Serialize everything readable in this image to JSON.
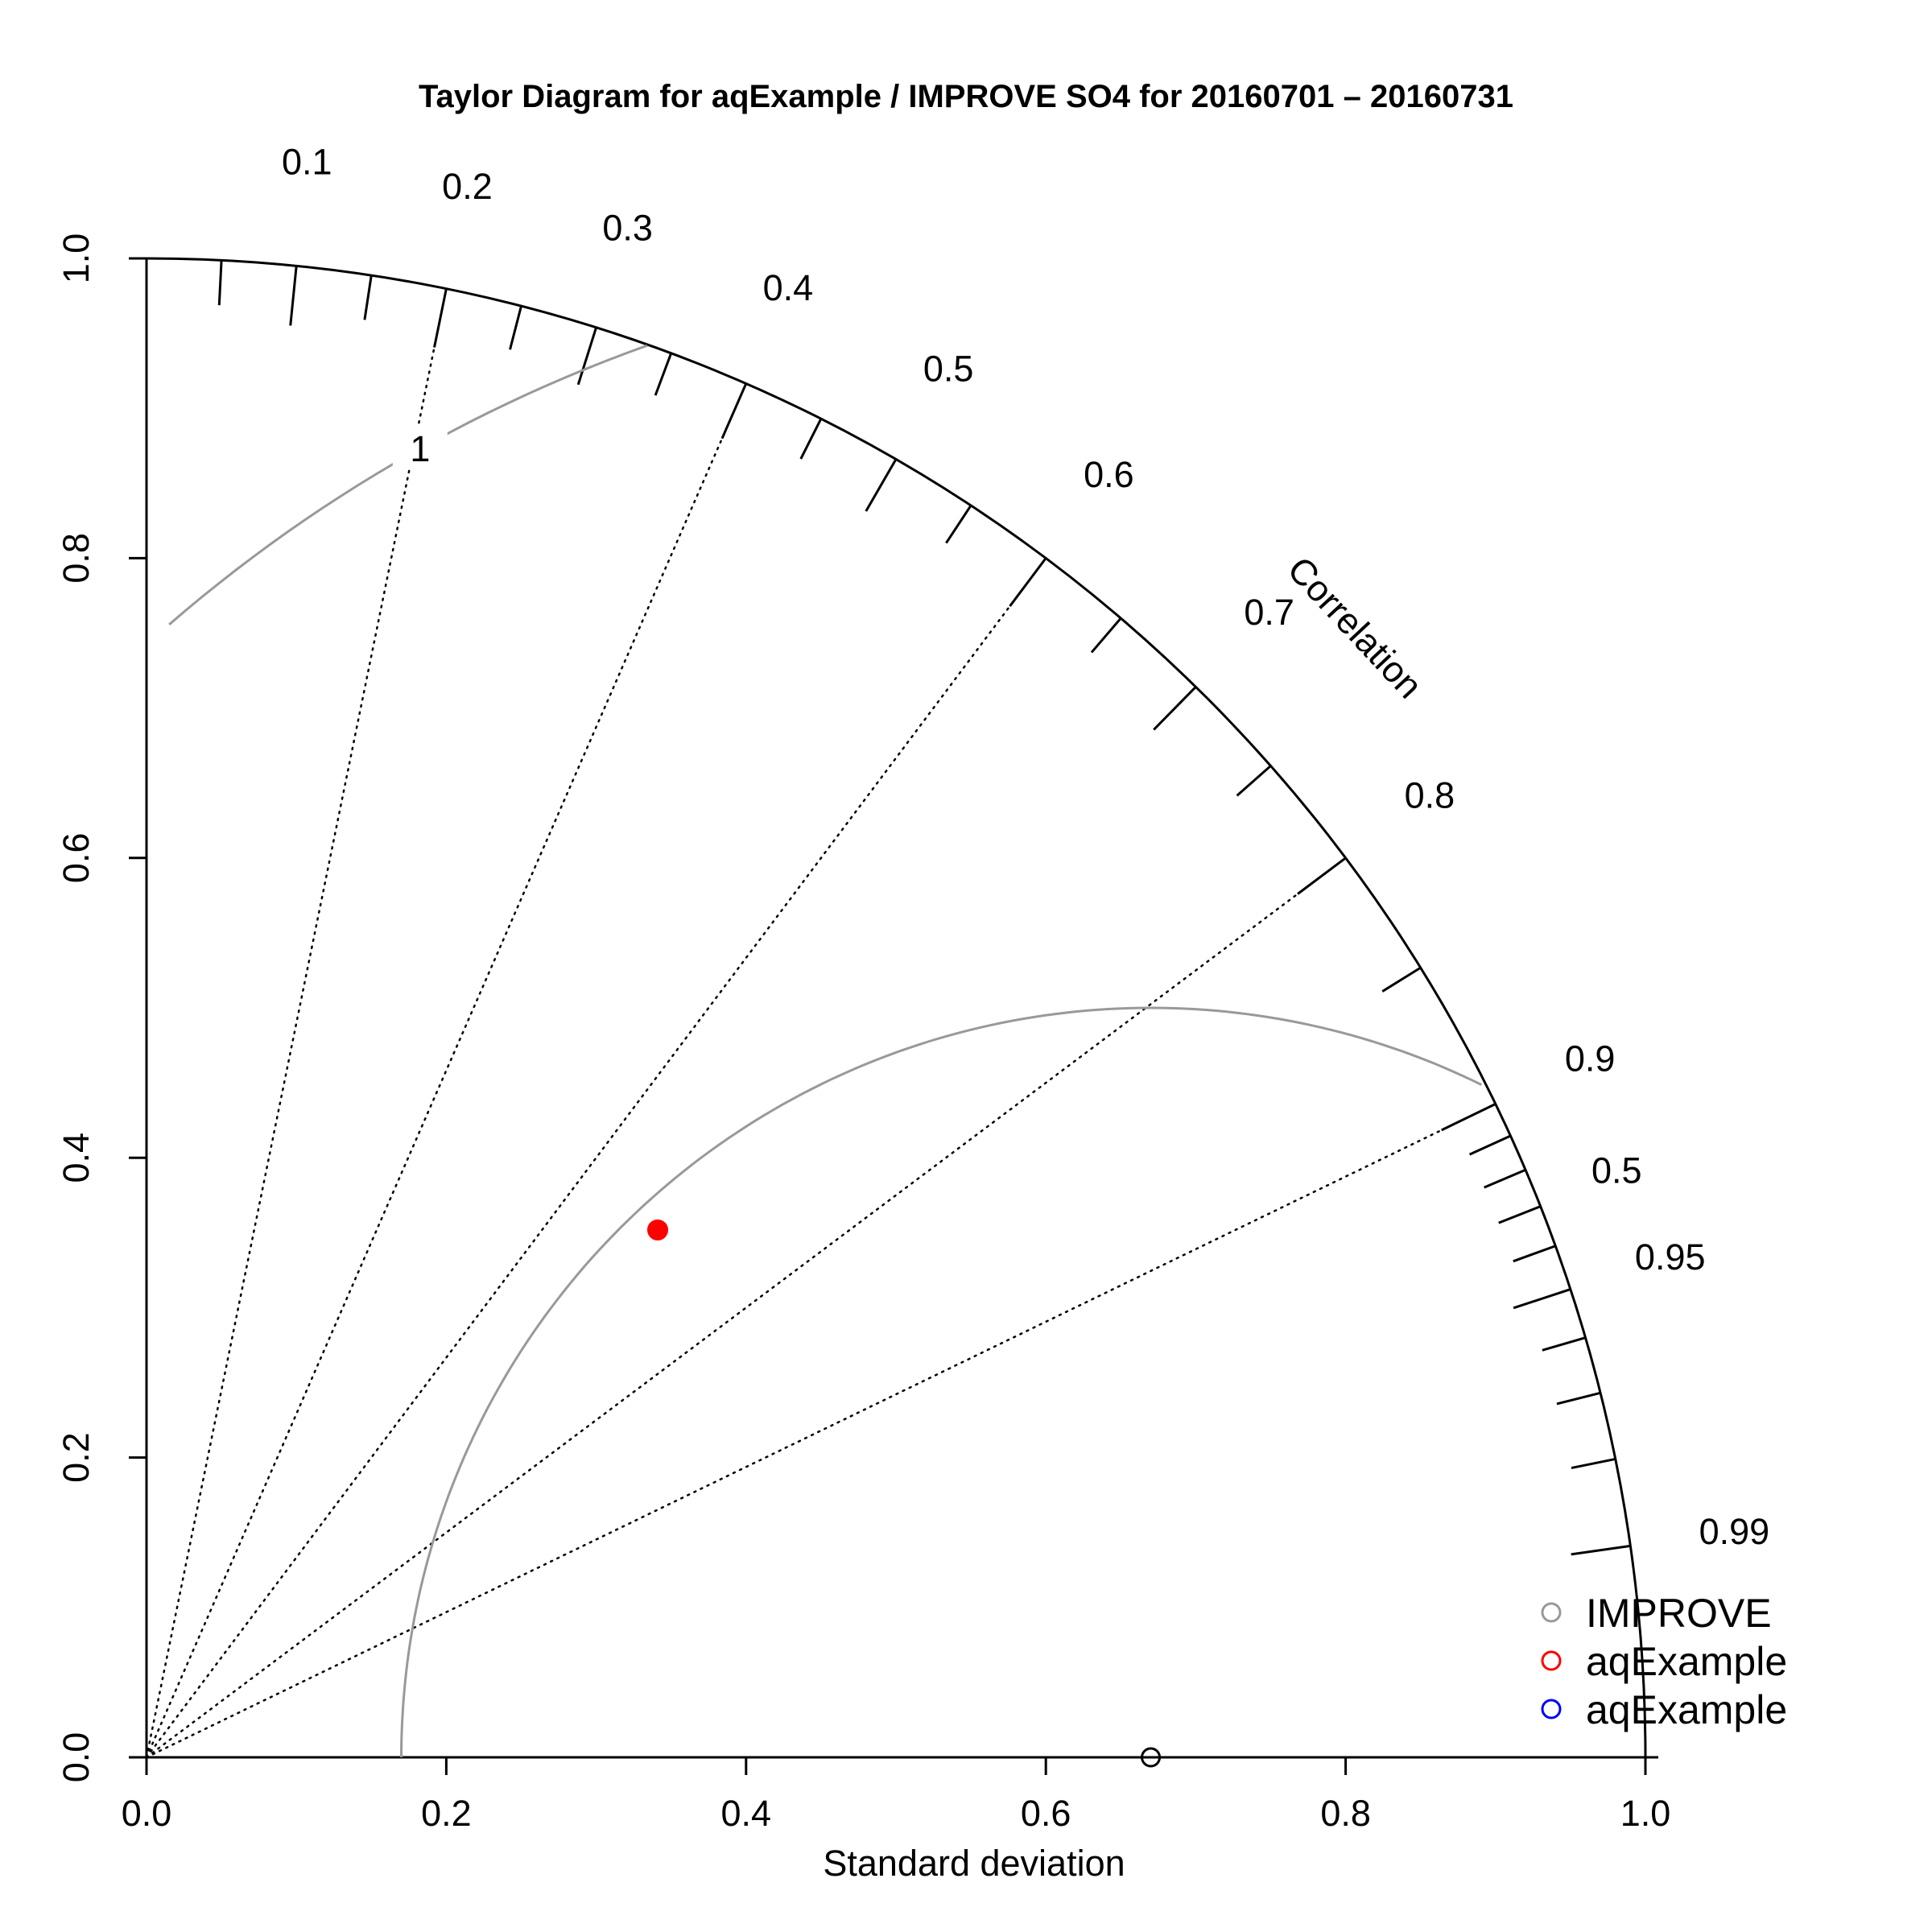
{
  "chart_data": {
    "type": "scatter",
    "subtype": "taylor-diagram",
    "title": "Taylor Diagram for aqExample / IMPROVE SO4 for 20160701 – 20160731",
    "xlabel": "Standard deviation",
    "arc_label": "Correlation",
    "sd_max": 1.0,
    "x_ticks": [
      "0.0",
      "0.2",
      "0.4",
      "0.6",
      "0.8",
      "1.0"
    ],
    "y_ticks": [
      "0.0",
      "0.2",
      "0.4",
      "0.6",
      "0.8",
      "1.0"
    ],
    "correlation_ticks": [
      "0.1",
      "0.2",
      "0.3",
      "0.4",
      "0.5",
      "0.6",
      "0.7",
      "0.8",
      "0.9",
      "0.95",
      "0.99"
    ],
    "correlation_dotted_lines": [
      0.2,
      0.4,
      0.6,
      0.8,
      0.9
    ],
    "rms_contours": [
      {
        "label": "0.5",
        "value": 0.5
      },
      {
        "label": "1",
        "value": 1.0
      }
    ],
    "reference": {
      "name": "IMPROVE",
      "sd": 0.67,
      "color": "#999999"
    },
    "points": [
      {
        "name": "aqExample",
        "sd": 0.49,
        "correlation": 0.696,
        "color": "#ff0000"
      }
    ],
    "legend": [
      {
        "label": "IMPROVE",
        "color": "#999999"
      },
      {
        "label": "aqExample",
        "color": "#ff0000"
      },
      {
        "label": "aqExample",
        "color": "#0000ff"
      }
    ],
    "legend_position": "bottom-right",
    "grid": false
  }
}
